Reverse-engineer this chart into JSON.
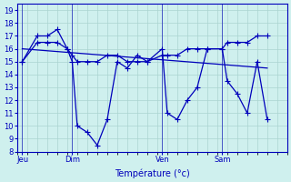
{
  "xlabel": "Température (°c)",
  "background_color": "#cff0ee",
  "line_color": "#0000bb",
  "grid_color": "#aad4d0",
  "ylim": [
    8,
    19.5
  ],
  "yticks": [
    8,
    9,
    10,
    11,
    12,
    13,
    14,
    15,
    16,
    17,
    18,
    19
  ],
  "ytick_fontsize": 6,
  "xlabel_fontsize": 7,
  "xtick_fontsize": 6,
  "day_labels": [
    "Jeu",
    "Dim",
    "Ven",
    "Sam"
  ],
  "day_positions": [
    0.5,
    5.5,
    14.5,
    20.5
  ],
  "xlim": [
    0,
    27
  ],
  "series1_x": [
    0.5,
    2,
    3,
    4,
    5,
    5.5,
    6,
    7,
    8,
    9,
    10,
    11,
    12,
    13,
    14.5,
    15,
    16,
    17,
    18,
    19,
    20.5,
    21,
    22,
    23,
    24,
    25
  ],
  "series1_y": [
    15,
    17,
    17,
    17.5,
    16,
    15,
    10,
    9.5,
    8.5,
    10.5,
    15,
    14.5,
    15.5,
    15,
    16,
    11,
    10.5,
    12,
    13,
    16,
    16,
    13.5,
    12.5,
    11,
    15,
    10.5
  ],
  "series2_x": [
    0.5,
    2,
    3,
    4,
    5,
    5.5,
    6,
    7,
    8,
    9,
    10,
    11,
    12,
    13,
    14.5,
    15,
    16,
    17,
    18,
    19,
    20.5,
    21,
    22,
    23,
    24,
    25
  ],
  "series2_y": [
    15,
    16.5,
    16.5,
    16.5,
    16,
    15.5,
    15,
    15,
    15,
    15.5,
    15.5,
    15,
    15,
    15,
    15.5,
    15.5,
    15.5,
    16,
    16,
    16,
    16,
    16.5,
    16.5,
    16.5,
    17,
    17
  ],
  "trend_x": [
    0.5,
    25
  ],
  "trend_y": [
    16,
    14.5
  ],
  "num_x_minor": 27
}
